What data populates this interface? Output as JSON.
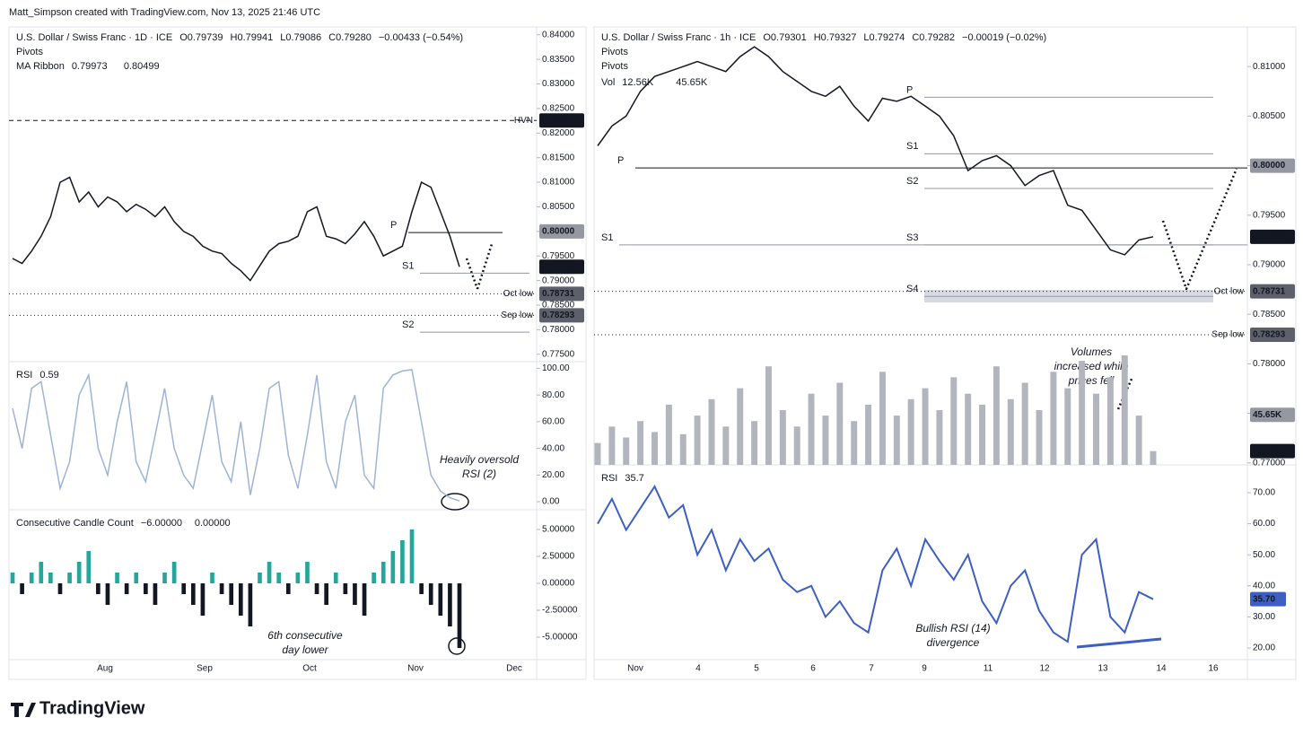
{
  "header": "Matt_Simpson created with TradingView.com, Nov 13, 2025 21:46 UTC",
  "footer": "TradingView",
  "chart_data": [
    {
      "type": "line",
      "symbol": "U.S. Dollar / Swiss Franc · 1D · ICE",
      "ohlc": [
        "O0.79739",
        "H0.79941",
        "L0.79086",
        "C0.79280"
      ],
      "change": "−0.00433 (−0.54%)",
      "studies": [
        "Pivots",
        "MA Ribbon"
      ],
      "ma_values": [
        0.79973,
        0.80499
      ],
      "ma_colors": [
        "#b22833",
        "#5b3e96"
      ],
      "xlabels": [
        "Aug",
        "Sep",
        "Oct",
        "Nov",
        "Dec"
      ],
      "color": "#131722",
      "values": [
        0.7945,
        0.7935,
        0.796,
        0.799,
        0.803,
        0.81,
        0.811,
        0.806,
        0.808,
        0.805,
        0.807,
        0.806,
        0.804,
        0.8055,
        0.8045,
        0.803,
        0.805,
        0.802,
        0.8,
        0.799,
        0.797,
        0.796,
        0.7955,
        0.7935,
        0.792,
        0.79,
        0.793,
        0.796,
        0.7975,
        0.798,
        0.799,
        0.804,
        0.805,
        0.799,
        0.7985,
        0.7975,
        0.7995,
        0.802,
        0.799,
        0.795,
        0.796,
        0.797,
        0.804,
        0.81,
        0.809,
        0.804,
        0.799,
        0.7928
      ],
      "ylim": [
        0.7735,
        0.8416
      ],
      "yticks": [
        {
          "value": 0.775,
          "label": "0.77500"
        },
        {
          "value": 0.78,
          "label": "0.78000"
        },
        {
          "value": 0.785,
          "label": "0.78500"
        },
        {
          "value": 0.79,
          "label": "0.79000"
        },
        {
          "value": 0.795,
          "label": "0.79500"
        },
        {
          "value": 0.8,
          "label": "0.80000"
        },
        {
          "value": 0.805,
          "label": "0.80500"
        },
        {
          "value": 0.81,
          "label": "0.81000"
        },
        {
          "value": 0.815,
          "label": "0.81500"
        },
        {
          "value": 0.82,
          "label": "0.82000"
        },
        {
          "value": 0.825,
          "label": "0.82500"
        },
        {
          "value": 0.83,
          "label": "0.83000"
        },
        {
          "value": 0.835,
          "label": "0.83500"
        },
        {
          "value": 0.84,
          "label": "0.84000"
        }
      ],
      "levels": [
        {
          "name": "HVN",
          "value": 0.82257,
          "label": "0.82257",
          "color": "#131722"
        },
        {
          "value": 0.8,
          "label": "0.80000",
          "color": "#9598a1"
        },
        {
          "value": 0.7928,
          "label": "0.79280",
          "color": "#131722"
        },
        {
          "name": "Oct low",
          "value": 0.78731,
          "label": "0.78731",
          "color": "#5d606b"
        },
        {
          "name": "Sep low",
          "value": 0.78293,
          "label": "0.78293",
          "color": "#5d606b"
        }
      ],
      "pivots": [
        {
          "name": "P",
          "value": 0.79977
        },
        {
          "name": "S1",
          "value": 0.7915
        },
        {
          "name": "S2",
          "value": 0.7795
        }
      ],
      "grid": false
    },
    {
      "type": "line",
      "name": "RSI",
      "last": 0.59,
      "color": "#9fb3d6",
      "values": [
        70,
        40,
        85,
        90,
        50,
        10,
        30,
        80,
        95,
        40,
        20,
        60,
        90,
        30,
        15,
        50,
        85,
        40,
        20,
        10,
        45,
        80,
        30,
        15,
        60,
        5,
        40,
        85,
        90,
        35,
        10,
        50,
        95,
        30,
        10,
        60,
        80,
        20,
        10,
        85,
        95,
        98,
        99,
        60,
        20,
        8,
        3,
        0.59
      ],
      "ylim": [
        -6,
        105
      ],
      "yticks": [
        {
          "value": 0,
          "label": "0.00"
        },
        {
          "value": 20,
          "label": "20.00"
        },
        {
          "value": 40,
          "label": "40.00"
        },
        {
          "value": 60,
          "label": "60.00"
        },
        {
          "value": 80,
          "label": "80.00"
        },
        {
          "value": 100,
          "label": "100.00"
        }
      ],
      "annotations": [
        "Heavily oversold",
        "RSI (2)"
      ],
      "grid": false
    },
    {
      "type": "bar",
      "name": "Consecutive Candle Count",
      "legend_values": [
        "−6.00000",
        "0.00000"
      ],
      "color": "#26a69a",
      "neg_color": "#131722",
      "values": [
        1,
        -1,
        1,
        2,
        1,
        -1,
        1,
        2,
        3,
        -1,
        -2,
        1,
        -1,
        1,
        -1,
        -2,
        1,
        2,
        -1,
        -2,
        -3,
        1,
        -1,
        -2,
        -3,
        -4,
        1,
        2,
        1,
        -1,
        1,
        2,
        -1,
        -2,
        1,
        -1,
        -2,
        -3,
        1,
        2,
        3,
        4,
        5,
        -1,
        -2,
        -3,
        -4,
        -6
      ],
      "ylim": [
        -7.08,
        6.83
      ],
      "yticks": [
        {
          "value": -5,
          "label": "-5.00000"
        },
        {
          "value": -2.5,
          "label": "-2.50000"
        },
        {
          "value": 0,
          "label": "0.00000"
        },
        {
          "value": 2.5,
          "label": "2.50000"
        },
        {
          "value": 5,
          "label": "5.00000"
        }
      ],
      "annotations": [
        "6th consecutive",
        "day lower"
      ],
      "grid": false
    },
    {
      "type": "line",
      "symbol": "U.S. Dollar / Swiss Franc · 1h · ICE",
      "ohlc": [
        "O0.79301",
        "H0.79327",
        "L0.79274",
        "C0.79282"
      ],
      "change": "−0.00019 (−0.02%)",
      "studies": [
        "Pivots",
        "Pivots"
      ],
      "xlabels": [
        "Nov",
        "4",
        "5",
        "6",
        "7",
        "9",
        "11",
        "12",
        "13",
        "14",
        "16"
      ],
      "color": "#131722",
      "values": [
        0.802,
        0.804,
        0.805,
        0.8075,
        0.809,
        0.8095,
        0.81,
        0.8105,
        0.81,
        0.8095,
        0.811,
        0.812,
        0.811,
        0.8095,
        0.8085,
        0.8075,
        0.807,
        0.808,
        0.806,
        0.8045,
        0.8068,
        0.8065,
        0.807,
        0.806,
        0.805,
        0.803,
        0.7995,
        0.8005,
        0.801,
        0.8,
        0.798,
        0.799,
        0.7995,
        0.796,
        0.7955,
        0.7935,
        0.7915,
        0.791,
        0.7925,
        0.79282
      ],
      "ylim": [
        0.7698,
        0.814
      ],
      "yticks": [
        {
          "value": 0.77,
          "label": "0.77000"
        },
        {
          "value": 0.775,
          "label": "0.77500"
        },
        {
          "value": 0.78,
          "label": "0.78000"
        },
        {
          "value": 0.785,
          "label": "0.78500"
        },
        {
          "value": 0.79,
          "label": "0.79000"
        },
        {
          "value": 0.795,
          "label": "0.79500"
        },
        {
          "value": 0.8,
          "label": "0.80000"
        },
        {
          "value": 0.805,
          "label": "0.80500"
        },
        {
          "value": 0.81,
          "label": "0.81000"
        }
      ],
      "levels": [
        {
          "value": 0.8,
          "label": "0.80000",
          "color": "#9598a1"
        },
        {
          "value": 0.79282,
          "label": "0.79282",
          "color": "#131722"
        },
        {
          "name": "Oct low",
          "value": 0.78731,
          "label": "0.78731",
          "color": "#5d606b"
        },
        {
          "name": "Sep low",
          "value": 0.78293,
          "label": "0.78293",
          "color": "#5d606b"
        }
      ],
      "pivots": [
        {
          "name": "P",
          "value": 0.79977
        },
        {
          "name": "S1",
          "value": 0.792
        },
        {
          "name": "P",
          "value": 0.8069
        },
        {
          "name": "S1",
          "value": 0.8012
        },
        {
          "name": "S2",
          "value": 0.7977
        },
        {
          "name": "S3",
          "value": 0.792
        },
        {
          "name": "S4",
          "value": 0.7868
        }
      ],
      "annotations": [
        "Volumes",
        "increased while",
        "prices fell"
      ],
      "grid": false
    },
    {
      "type": "bar",
      "name": "Vol",
      "legend_values": [
        "12.56K",
        "45.65K"
      ],
      "color": "#b2b5be",
      "neg_color": "#b2b5be",
      "values": [
        20,
        35,
        25,
        40,
        30,
        55,
        28,
        45,
        60,
        35,
        70,
        40,
        90,
        50,
        35,
        65,
        45,
        75,
        40,
        55,
        85,
        45,
        60,
        70,
        50,
        80,
        65,
        55,
        90,
        60,
        75,
        50,
        85,
        70,
        95,
        65,
        80,
        100,
        45,
        12.56
      ],
      "ylim": [
        0,
        400
      ],
      "levels": [
        {
          "value": 45.65,
          "label": "45.65K",
          "color": "#9598a1"
        },
        {
          "value": 12.56,
          "label": "12.56K",
          "color": "#131722"
        }
      ],
      "grid": false
    },
    {
      "type": "line",
      "name": "RSI",
      "last": 35.7,
      "last_label": "35.70",
      "color": "#3d5fc4",
      "values": [
        60,
        68,
        58,
        65,
        72,
        62,
        66,
        50,
        58,
        45,
        55,
        48,
        52,
        42,
        38,
        40,
        30,
        35,
        28,
        25,
        45,
        52,
        40,
        55,
        48,
        42,
        50,
        35,
        28,
        40,
        45,
        32,
        25,
        22,
        50,
        55,
        30,
        25,
        38,
        35.7
      ],
      "ylim": [
        16.24,
        78.96
      ],
      "yticks": [
        {
          "value": 20,
          "label": "20.00"
        },
        {
          "value": 30,
          "label": "30.00"
        },
        {
          "value": 40,
          "label": "40.00"
        },
        {
          "value": 50,
          "label": "50.00"
        },
        {
          "value": 60,
          "label": "60.00"
        },
        {
          "value": 70,
          "label": "70.00"
        }
      ],
      "annotations": [
        "Bullish RSI (14)",
        "divergence"
      ],
      "grid": false
    }
  ]
}
